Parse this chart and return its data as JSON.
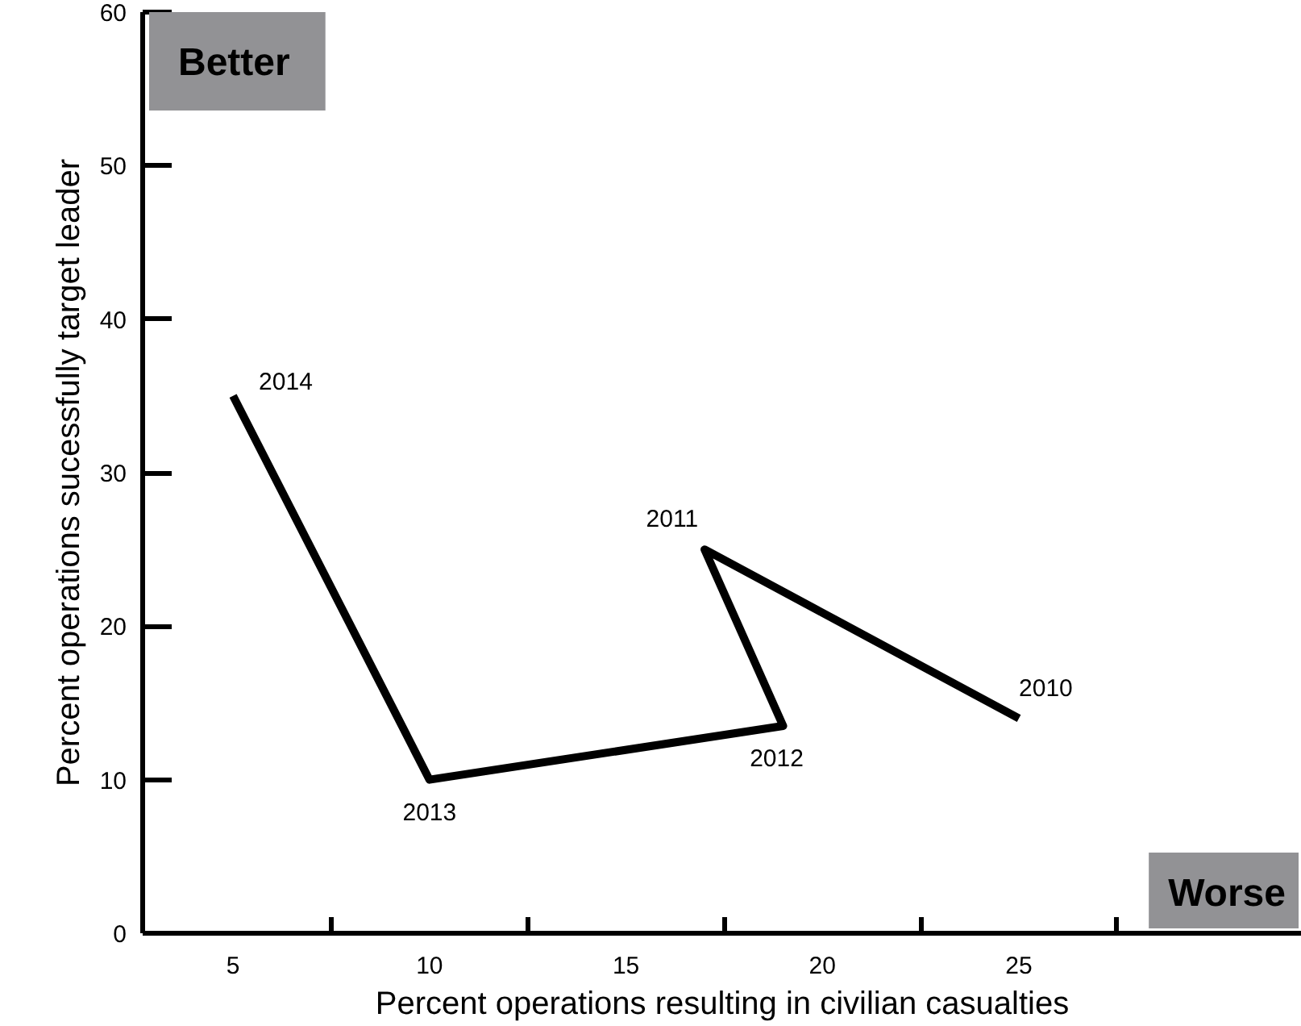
{
  "chart_data": {
    "type": "line",
    "xlabel": "Percent operations resulting in civilian casualties",
    "ylabel": "Percent operations sucessfully target leader",
    "series": [
      {
        "color": "#000000",
        "x": [
          25,
          17,
          19,
          10,
          5
        ],
        "values": [
          14,
          25,
          13.5,
          10,
          35
        ]
      }
    ],
    "xlim": [
      2.7,
      32.2
    ],
    "ylim": [
      0,
      60
    ],
    "xticks": [
      5,
      10,
      15,
      20,
      25,
      {
        "value": 7.5,
        "label": null
      },
      {
        "value": 12.5,
        "label": null
      },
      {
        "value": 17.5,
        "label": null
      },
      {
        "value": 22.5,
        "label": null
      },
      {
        "value": 27.5,
        "label": null
      }
    ],
    "yticks": [
      0,
      10,
      20,
      30,
      40,
      50,
      60
    ],
    "annotations": [
      {
        "text": "2010",
        "x": 25,
        "y": 14
      },
      {
        "text": "2011",
        "x": 17,
        "y": 25
      },
      {
        "text": "2012",
        "x": 19,
        "y": 13.5
      },
      {
        "text": "2013",
        "x": 10,
        "y": 10
      },
      {
        "text": "2014",
        "x": 5,
        "y": 35
      },
      "Better",
      "Worse"
    ],
    "grid": false,
    "marker": "none",
    "line_style": "solid"
  }
}
